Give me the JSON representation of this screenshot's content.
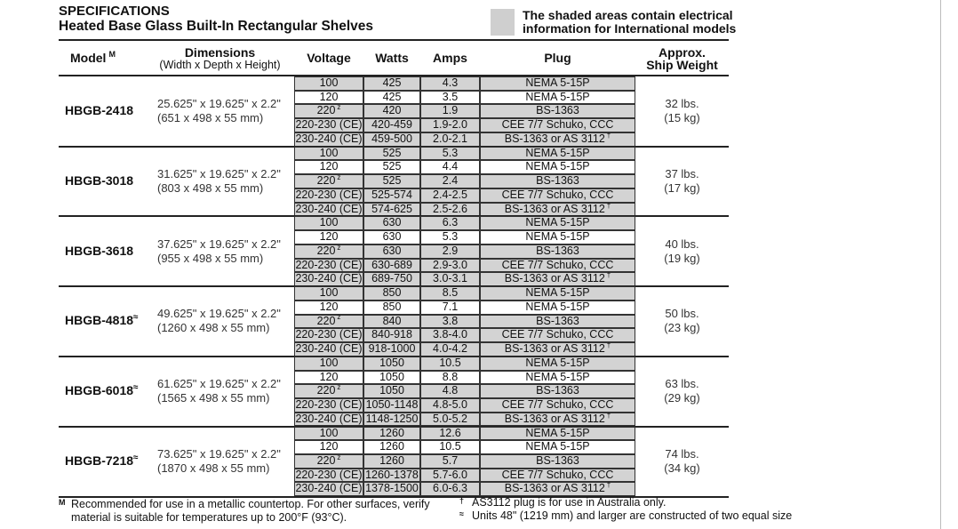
{
  "header": {
    "title": "SPECIFICATIONS",
    "subtitle": "Heated Base Glass Built-In Rectangular Shelves",
    "note": [
      "The shaded areas contain electrical",
      "information for International models"
    ]
  },
  "table": {
    "columns": [
      {
        "label": "Model",
        "note": "M"
      },
      {
        "label": "Dimensions",
        "sublabel": "(Width x Depth x Height)"
      },
      {
        "label": "Voltage"
      },
      {
        "label": "Watts"
      },
      {
        "label": "Amps"
      },
      {
        "label": "Plug"
      },
      {
        "label": "Approx.",
        "sublabel": "Ship Weight"
      }
    ],
    "groups": [
      {
        "model": "HBGB-2418",
        "dims": [
          "25.625\" x 19.625\" x 2.2\"",
          "(651 x 498 x 55 mm)"
        ],
        "weight": [
          "32 lbs.",
          "(15 kg)"
        ],
        "rows": [
          {
            "voltage": "100",
            "watts": "425",
            "amps": "4.3",
            "plug": "NEMA 5-15P",
            "shaded": true
          },
          {
            "voltage": "120",
            "watts": "425",
            "amps": "3.5",
            "plug": "NEMA 5-15P",
            "shaded": false
          },
          {
            "voltage": "220",
            "voltage_note": "z",
            "watts": "420",
            "amps": "1.9",
            "plug": "BS-1363",
            "shaded": true
          },
          {
            "voltage": "220-230 (CE)",
            "watts": "420-459",
            "amps": "1.9-2.0",
            "plug": "CEE 7/7 Schuko, CCC",
            "shaded": true
          },
          {
            "voltage": "230-240 (CE)",
            "watts": "459-500",
            "amps": "2.0-2.1",
            "plug": "BS-1363 or AS 3112",
            "plug_note": "†",
            "shaded": true
          }
        ]
      },
      {
        "model": "HBGB-3018",
        "dims": [
          "31.625\" x 19.625\" x 2.2\"",
          "(803 x 498 x 55 mm)"
        ],
        "weight": [
          "37 lbs.",
          "(17 kg)"
        ],
        "rows": [
          {
            "voltage": "100",
            "watts": "525",
            "amps": "5.3",
            "plug": "NEMA 5-15P",
            "shaded": true
          },
          {
            "voltage": "120",
            "watts": "525",
            "amps": "4.4",
            "plug": "NEMA 5-15P",
            "shaded": false
          },
          {
            "voltage": "220",
            "voltage_note": "z",
            "watts": "525",
            "amps": "2.4",
            "plug": "BS-1363",
            "shaded": true
          },
          {
            "voltage": "220-230 (CE)",
            "watts": "525-574",
            "amps": "2.4-2.5",
            "plug": "CEE 7/7 Schuko, CCC",
            "shaded": true
          },
          {
            "voltage": "230-240 (CE)",
            "watts": "574-625",
            "amps": "2.5-2.6",
            "plug": "BS-1363 or AS 3112",
            "plug_note": "†",
            "shaded": true
          }
        ]
      },
      {
        "model": "HBGB-3618",
        "dims": [
          "37.625\" x 19.625\" x 2.2\"",
          "(955 x 498 x 55 mm)"
        ],
        "weight": [
          "40 lbs.",
          "(19 kg)"
        ],
        "rows": [
          {
            "voltage": "100",
            "watts": "630",
            "amps": "6.3",
            "plug": "NEMA 5-15P",
            "shaded": true
          },
          {
            "voltage": "120",
            "watts": "630",
            "amps": "5.3",
            "plug": "NEMA 5-15P",
            "shaded": false
          },
          {
            "voltage": "220",
            "voltage_note": "z",
            "watts": "630",
            "amps": "2.9",
            "plug": "BS-1363",
            "shaded": true
          },
          {
            "voltage": "220-230 (CE)",
            "watts": "630-689",
            "amps": "2.9-3.0",
            "plug": "CEE 7/7 Schuko, CCC",
            "shaded": true
          },
          {
            "voltage": "230-240 (CE)",
            "watts": "689-750",
            "amps": "3.0-3.1",
            "plug": "BS-1363 or AS 3112",
            "plug_note": "†",
            "shaded": true
          }
        ]
      },
      {
        "model": "HBGB-4818",
        "model_note": "≈",
        "dims": [
          "49.625\" x 19.625\" x 2.2\"",
          "(1260 x 498 x 55 mm)"
        ],
        "weight": [
          "50 lbs.",
          "(23 kg)"
        ],
        "rows": [
          {
            "voltage": "100",
            "watts": "850",
            "amps": "8.5",
            "plug": "NEMA 5-15P",
            "shaded": true
          },
          {
            "voltage": "120",
            "watts": "850",
            "amps": "7.1",
            "plug": "NEMA 5-15P",
            "shaded": false
          },
          {
            "voltage": "220",
            "voltage_note": "z",
            "watts": "840",
            "amps": "3.8",
            "plug": "BS-1363",
            "shaded": true
          },
          {
            "voltage": "220-230 (CE)",
            "watts": "840-918",
            "amps": "3.8-4.0",
            "plug": "CEE 7/7 Schuko, CCC",
            "shaded": true
          },
          {
            "voltage": "230-240 (CE)",
            "watts": "918-1000",
            "amps": "4.0-4.2",
            "plug": "BS-1363 or AS 3112",
            "plug_note": "†",
            "shaded": true
          }
        ]
      },
      {
        "model": "HBGB-6018",
        "model_note": "≈",
        "dims": [
          "61.625\" x 19.625\" x 2.2\"",
          "(1565 x 498 x 55 mm)"
        ],
        "weight": [
          "63 lbs.",
          "(29 kg)"
        ],
        "rows": [
          {
            "voltage": "100",
            "watts": "1050",
            "amps": "10.5",
            "plug": "NEMA 5-15P",
            "shaded": true
          },
          {
            "voltage": "120",
            "watts": "1050",
            "amps": "8.8",
            "plug": "NEMA 5-15P",
            "shaded": false
          },
          {
            "voltage": "220",
            "voltage_note": "z",
            "watts": "1050",
            "amps": "4.8",
            "plug": "BS-1363",
            "shaded": true
          },
          {
            "voltage": "220-230 (CE)",
            "watts": "1050-1148",
            "amps": "4.8-5.0",
            "plug": "CEE 7/7 Schuko, CCC",
            "shaded": true
          },
          {
            "voltage": "230-240 (CE)",
            "watts": "1148-1250",
            "amps": "5.0-5.2",
            "plug": "BS-1363 or AS 3112",
            "plug_note": "†",
            "shaded": true
          }
        ]
      },
      {
        "model": "HBGB-7218",
        "model_note": "≈",
        "dims": [
          "73.625\" x 19.625\" x 2.2\"",
          "(1870 x 498 x 55 mm)"
        ],
        "weight": [
          "74 lbs.",
          "(34 kg)"
        ],
        "rows": [
          {
            "voltage": "100",
            "watts": "1260",
            "amps": "12.6",
            "plug": "NEMA 5-15P",
            "shaded": true
          },
          {
            "voltage": "120",
            "watts": "1260",
            "amps": "10.5",
            "plug": "NEMA 5-15P",
            "shaded": false
          },
          {
            "voltage": "220",
            "voltage_note": "z",
            "watts": "1260",
            "amps": "5.7",
            "plug": "BS-1363",
            "shaded": true
          },
          {
            "voltage": "220-230 (CE)",
            "watts": "1260-1378",
            "amps": "5.7-6.0",
            "plug": "CEE 7/7 Schuko, CCC",
            "shaded": true
          },
          {
            "voltage": "230-240 (CE)",
            "watts": "1378-1500",
            "amps": "6.0-6.3",
            "plug": "BS-1363 or AS 3112",
            "plug_note": "†",
            "shaded": true
          }
        ]
      }
    ]
  },
  "footnotes": [
    {
      "mark": "M",
      "text": "Recommended for use in a metallic countertop. For other surfaces, verify material is suitable for temperatures up to 200°F (93°C)."
    },
    {
      "mark": "†",
      "text": "AS3112 plug is for use in Australia only."
    },
    {
      "mark": "≈",
      "text": "Units 48\" (1219 mm) and larger are constructed of two equal size"
    }
  ]
}
